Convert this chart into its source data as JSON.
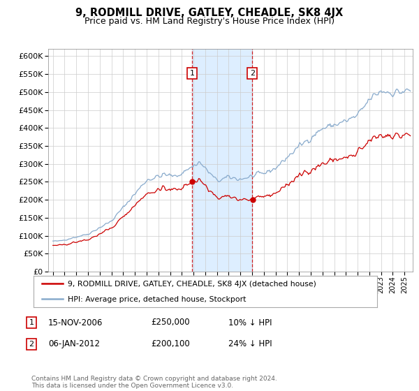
{
  "title": "9, RODMILL DRIVE, GATLEY, CHEADLE, SK8 4JX",
  "subtitle": "Price paid vs. HM Land Registry's House Price Index (HPI)",
  "legend_line1": "9, RODMILL DRIVE, GATLEY, CHEADLE, SK8 4JX (detached house)",
  "legend_line2": "HPI: Average price, detached house, Stockport",
  "sale1_date": "15-NOV-2006",
  "sale1_price": 250000,
  "sale1_note": "10% ↓ HPI",
  "sale2_date": "06-JAN-2012",
  "sale2_price": 200100,
  "sale2_note": "24% ↓ HPI",
  "footer": "Contains HM Land Registry data © Crown copyright and database right 2024.\nThis data is licensed under the Open Government Licence v3.0.",
  "red_color": "#cc0000",
  "blue_color": "#88aacc",
  "shade_color": "#ddeeff",
  "ylim": [
    0,
    620000
  ],
  "yticks": [
    0,
    50000,
    100000,
    150000,
    200000,
    250000,
    300000,
    350000,
    400000,
    450000,
    500000,
    550000,
    600000
  ],
  "sale1_x": 2006.88,
  "sale2_x": 2012.02
}
